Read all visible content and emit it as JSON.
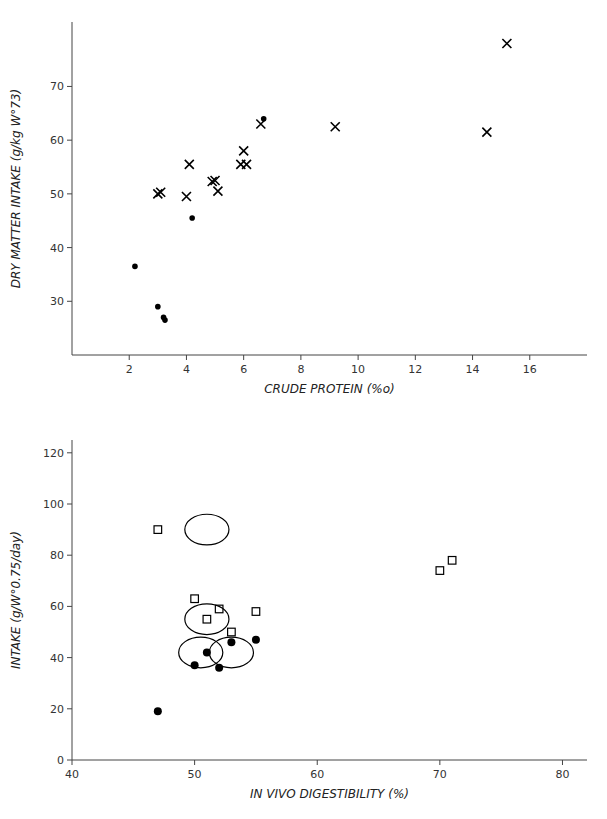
{
  "chart_data": [
    {
      "type": "scatter",
      "x_label": "CRUDE PROTEIN (%o)",
      "y_label": "DRY MATTER INTAKE (g/kg W°73)",
      "xlim": [
        0,
        18
      ],
      "ylim": [
        20,
        82
      ],
      "xticks": [
        2,
        4,
        6,
        8,
        10,
        12,
        14,
        16
      ],
      "yticks": [
        30,
        40,
        50,
        60,
        70
      ],
      "grid": false,
      "series": [
        {
          "marker": "cross",
          "color": "black",
          "x": [
            3.0,
            3.1,
            4.0,
            4.1,
            4.9,
            5.0,
            5.1,
            5.9,
            6.0,
            6.1,
            6.6,
            9.2,
            14.5,
            15.2
          ],
          "values": [
            50.0,
            50.3,
            49.5,
            55.5,
            52.3,
            52.5,
            50.5,
            55.5,
            58.0,
            55.5,
            63.0,
            62.5,
            61.5,
            78.0
          ]
        },
        {
          "marker": "dot",
          "color": "black",
          "x": [
            2.2,
            3.0,
            3.2,
            3.25,
            4.2,
            6.7
          ],
          "values": [
            36.5,
            29.0,
            27.0,
            26.5,
            45.5,
            64.0
          ]
        }
      ]
    },
    {
      "type": "scatter",
      "x_label": "IN VIVO DIGESTIBILITY (%)",
      "y_label": "INTAKE  (g/W°0.75/day)",
      "xlim": [
        40,
        82
      ],
      "ylim": [
        0,
        125
      ],
      "xticks": [
        40,
        50,
        60,
        70,
        80
      ],
      "yticks": [
        0,
        20,
        40,
        60,
        80,
        100,
        120
      ],
      "grid": false,
      "series": [
        {
          "marker": "open-square",
          "color": "black",
          "x": [
            47,
            50,
            51,
            52,
            53,
            55,
            70,
            71
          ],
          "values": [
            90,
            63,
            55,
            59,
            50,
            58,
            74,
            78
          ]
        },
        {
          "marker": "circle",
          "color": "black",
          "x": [
            47,
            50,
            51,
            52,
            53,
            55
          ],
          "values": [
            19,
            37,
            42,
            36,
            46,
            47
          ]
        }
      ],
      "circled_points": [
        {
          "x": 51.0,
          "y": 90,
          "rx": 1.8,
          "ry": 6
        },
        {
          "x": 50.5,
          "y": 42,
          "rx": 1.8,
          "ry": 6
        },
        {
          "x": 53.0,
          "y": 42,
          "rx": 1.8,
          "ry": 6
        },
        {
          "x": 51.0,
          "y": 55,
          "rx": 1.8,
          "ry": 6
        }
      ]
    }
  ]
}
